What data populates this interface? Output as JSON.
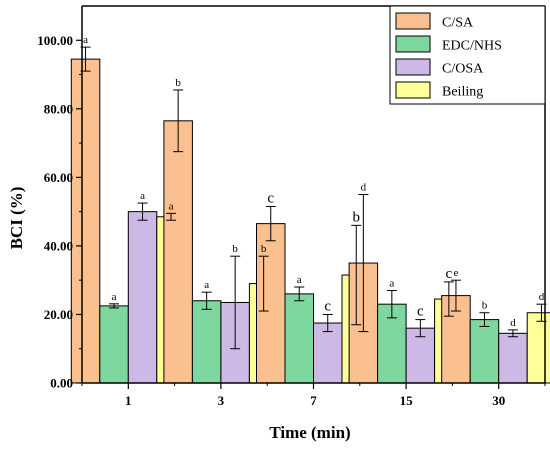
{
  "chart_data": {
    "type": "bar",
    "xlabel": "Time (min)",
    "ylabel": "BCI (%)",
    "ylim": [
      0,
      110
    ],
    "y_ticks": [
      "0.00",
      "20.00",
      "40.00",
      "60.00",
      "80.00",
      "100.00"
    ],
    "categories": [
      "1",
      "3",
      "7",
      "15",
      "30"
    ],
    "legend_position": "top-right",
    "grid": false,
    "series": [
      {
        "name": "C/SA",
        "color": "#FAC090",
        "values": [
          94.5,
          76.5,
          46.5,
          35.0,
          25.5
        ],
        "errors": [
          3.5,
          9.0,
          5.0,
          20.0,
          4.5
        ],
        "labels": [
          "a",
          "b",
          "c",
          "d",
          "e"
        ]
      },
      {
        "name": "EDC/NHS",
        "color": "#7FD7A0",
        "values": [
          22.5,
          24.0,
          26.0,
          23.0,
          18.5
        ],
        "errors": [
          0.6,
          2.5,
          2.0,
          4.0,
          2.0
        ],
        "labels": [
          "a",
          "a",
          "a",
          "a",
          "b"
        ]
      },
      {
        "name": "C/OSA",
        "color": "#CDB8E6",
        "values": [
          50.0,
          23.5,
          17.5,
          16.0,
          14.5
        ],
        "errors": [
          2.5,
          13.5,
          2.5,
          2.5,
          1.0
        ],
        "labels": [
          "a",
          "b",
          "c",
          "c",
          "d"
        ]
      },
      {
        "name": "Beiling",
        "color": "#FFFF99",
        "values": [
          48.5,
          29.0,
          31.5,
          24.5,
          20.5
        ],
        "errors": [
          1.0,
          8.0,
          14.5,
          5.0,
          2.5
        ],
        "labels": [
          "a",
          "b",
          "b",
          "c",
          "d"
        ]
      }
    ]
  }
}
